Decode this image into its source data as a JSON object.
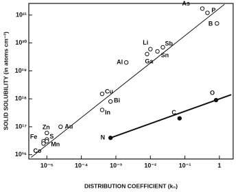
{
  "chart_data": {
    "type": "scatter",
    "x_label": "DISTRIBUTION COEFFICIENT (k₀)",
    "y_label": "SOLID SOLUBILITY (in atoms cm⁻³)",
    "log_x": true,
    "log_y": true,
    "xlim": [
      3e-06,
      2.5
    ],
    "ylim": [
      7000000000000000.0,
      2.6e+21
    ],
    "xticks": [
      {
        "value": 1e-05,
        "label": "10⁻⁵"
      },
      {
        "value": 0.0001,
        "label": "10⁻⁴"
      },
      {
        "value": 0.001,
        "label": "10⁻³"
      },
      {
        "value": 0.01,
        "label": "10⁻²"
      },
      {
        "value": 0.1,
        "label": "10⁻¹"
      },
      1
    ],
    "yticks": [
      {
        "value": 1e+16,
        "label": "10¹⁶"
      },
      {
        "value": 1e+17,
        "label": "10¹⁷"
      },
      {
        "value": 1e+18,
        "label": "10¹⁸"
      },
      {
        "value": 1e+19,
        "label": "10¹⁹"
      },
      {
        "value": 1e+20,
        "label": "10²⁰"
      },
      {
        "value": 1e+21,
        "label": "10²¹"
      }
    ],
    "series": [
      {
        "marker": "open",
        "color": "#111111",
        "labels": [
          "As",
          "P",
          "B",
          "Sb",
          "Sn",
          "Li",
          "Ga",
          "Al",
          "Cu",
          "Bi",
          "In",
          "Au",
          "Zn",
          "Fe",
          "S",
          "Mn",
          "Co"
        ],
        "x": [
          0.32,
          0.45,
          0.85,
          0.023,
          0.016,
          0.01,
          0.008,
          0.002,
          0.0004,
          0.0007,
          0.0004,
          2.5e-05,
          1e-05,
          8e-06,
          1e-05,
          1e-05,
          8e-06
        ],
        "values": [
          1.7e+21,
          1.2e+21,
          5e+20,
          7e+19,
          5e+19,
          6e+19,
          4e+19,
          2e+19,
          1.5e+18,
          8e+17,
          4e+17,
          1e+17,
          6e+16,
          3e+16,
          3.5e+16,
          3e+16,
          2.5e+16
        ]
      },
      {
        "marker": "filled",
        "color": "#111111",
        "labels": [
          "N",
          "C",
          "O"
        ],
        "x": [
          0.0007,
          0.07,
          0.8
        ],
        "values": [
          4e+16,
          2e+17,
          9e+17
        ]
      }
    ],
    "fit_lines": [
      {
        "x": [
          3.5e-06,
          1.4
        ],
        "values": [
          8000000000000000.0,
          2.4e+21
        ]
      },
      {
        "x": [
          0.0007,
          2.2
        ],
        "values": [
          4e+16,
          1.4e+18
        ]
      }
    ]
  }
}
